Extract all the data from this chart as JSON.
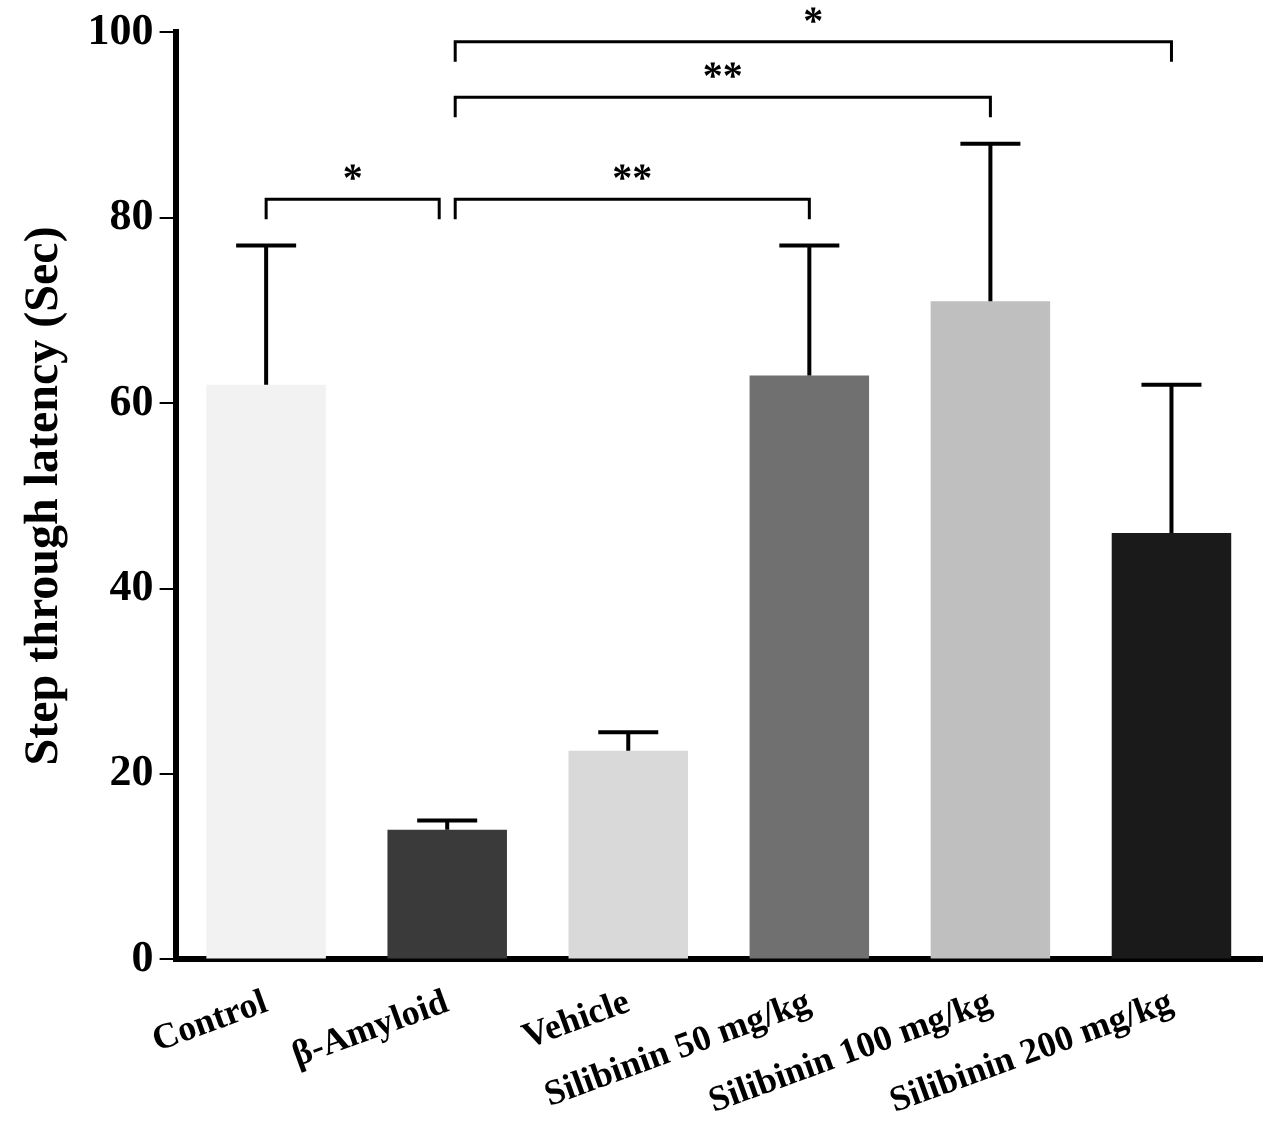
{
  "chart_data": {
    "type": "bar",
    "ylabel": "Step through latency (Sec)",
    "categories": [
      "Control",
      "β-Amyloid",
      "Vehicle",
      "Silibinin 50 mg/kg",
      "Silibinin 100 mg/kg",
      "Silibinin 200 mg/kg"
    ],
    "values": [
      62,
      14,
      22.5,
      63,
      71,
      46
    ],
    "errors": [
      15,
      1,
      2,
      14,
      17,
      16
    ],
    "colors": [
      "#f2f2f2",
      "#3a3a3a",
      "#d9d9d9",
      "#707070",
      "#bfbfbf",
      "#1a1a1a"
    ],
    "ylim": [
      0,
      100
    ],
    "yticks": [
      0,
      20,
      40,
      60,
      80,
      100
    ],
    "grid": false,
    "legend": false,
    "annotations": [
      "*",
      "**",
      "**",
      "*"
    ]
  }
}
